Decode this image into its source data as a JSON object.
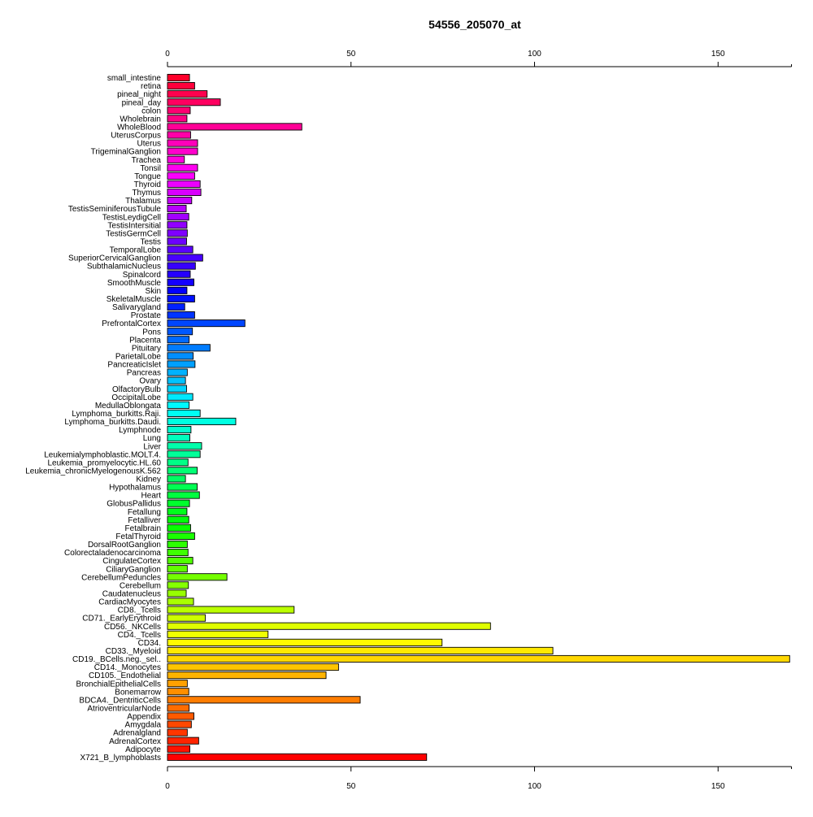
{
  "chart_data": {
    "type": "bar",
    "orientation": "horizontal",
    "title": "54556_205070_at",
    "xlabel": "",
    "ylabel": "",
    "xlim": [
      0,
      170
    ],
    "x_ticks": [
      0,
      50,
      100,
      150
    ],
    "x_tick_labels": [
      "0",
      "50",
      "100",
      "150"
    ],
    "axes": [
      "top",
      "bottom"
    ],
    "grid": false,
    "legend": "none",
    "categories": [
      "small_intestine",
      "retina",
      "pineal_night",
      "pineal_day",
      "colon",
      "Wholebrain",
      "WholeBlood",
      "UterusCorpus",
      "Uterus",
      "TrigeminalGanglion",
      "Trachea",
      "Tonsil",
      "Tongue",
      "Thyroid",
      "Thymus",
      "Thalamus",
      "TestisSeminiferousTubule",
      "TestisLeydigCell",
      "TestisIntersitial",
      "TestisGermCell",
      "Testis",
      "TemporalLobe",
      "SuperiorCervicalGanglion",
      "SubthalamicNucleus",
      "Spinalcord",
      "SmoothMuscle",
      "Skin",
      "SkeletalMuscle",
      "Salivarygland",
      "Prostate",
      "PrefrontalCortex",
      "Pons",
      "Placenta",
      "Pituitary",
      "ParietalLobe",
      "PancreaticIslet",
      "Pancreas",
      "Ovary",
      "OlfactoryBulb",
      "OccipitalLobe",
      "MedullaOblongata",
      "Lymphoma_burkitts.Raji.",
      "Lymphoma_burkitts.Daudi.",
      "Lymphnode",
      "Lung",
      "Liver",
      "Leukemialymphoblastic.MOLT.4.",
      "Leukemia_promyelocytic.HL.60",
      "Leukemia_chronicMyelogenousK.562",
      "Kidney",
      "Hypothalamus",
      "Heart",
      "GlobusPallidus",
      "Fetallung",
      "Fetalliver",
      "Fetalbrain",
      "FetalThyroid",
      "DorsalRootGanglion",
      "Colorectaladenocarcinoma",
      "CingulateCortex",
      "CiliaryGanglion",
      "CerebellumPeduncles",
      "Cerebellum",
      "Caudatenucleus",
      "CardiacMyocytes",
      "CD8._Tcells",
      "CD71._EarlyErythroid",
      "CD56._NKCells",
      "CD4._Tcells",
      "CD34.",
      "CD33._Myeloid",
      "CD19._BCells.neg._sel..",
      "CD14._Monocytes",
      "CD105._Endothelial",
      "BronchialEpithelialCells",
      "Bonemarrow",
      "BDCA4._DentriticCells",
      "AtrioventricularNode",
      "Appendix",
      "Amygdala",
      "Adrenalgland",
      "AdrenalCortex",
      "Adipocyte",
      "X721_B_lymphoblasts"
    ],
    "values": [
      6.0,
      7.4,
      10.8,
      14.4,
      6.2,
      5.3,
      36.6,
      6.3,
      8.2,
      8.2,
      4.6,
      8.2,
      7.4,
      8.9,
      9.1,
      6.6,
      5.1,
      5.8,
      5.3,
      5.4,
      5.2,
      6.9,
      9.6,
      7.6,
      6.2,
      7.2,
      5.3,
      7.4,
      4.7,
      7.4,
      21.1,
      6.8,
      5.9,
      11.6,
      7.0,
      7.5,
      5.4,
      4.9,
      5.2,
      6.9,
      5.9,
      8.9,
      18.6,
      6.4,
      6.1,
      9.3,
      8.9,
      5.6,
      8.1,
      4.9,
      8.1,
      8.7,
      6.0,
      5.3,
      5.8,
      6.3,
      7.4,
      5.4,
      5.6,
      6.9,
      5.4,
      16.2,
      5.7,
      5.1,
      7.1,
      34.5,
      10.3,
      88.0,
      27.4,
      74.8,
      105.0,
      169.5,
      46.6,
      43.2,
      5.4,
      5.8,
      52.5,
      5.9,
      7.2,
      6.5,
      5.4,
      8.5,
      6.1,
      70.6
    ]
  }
}
